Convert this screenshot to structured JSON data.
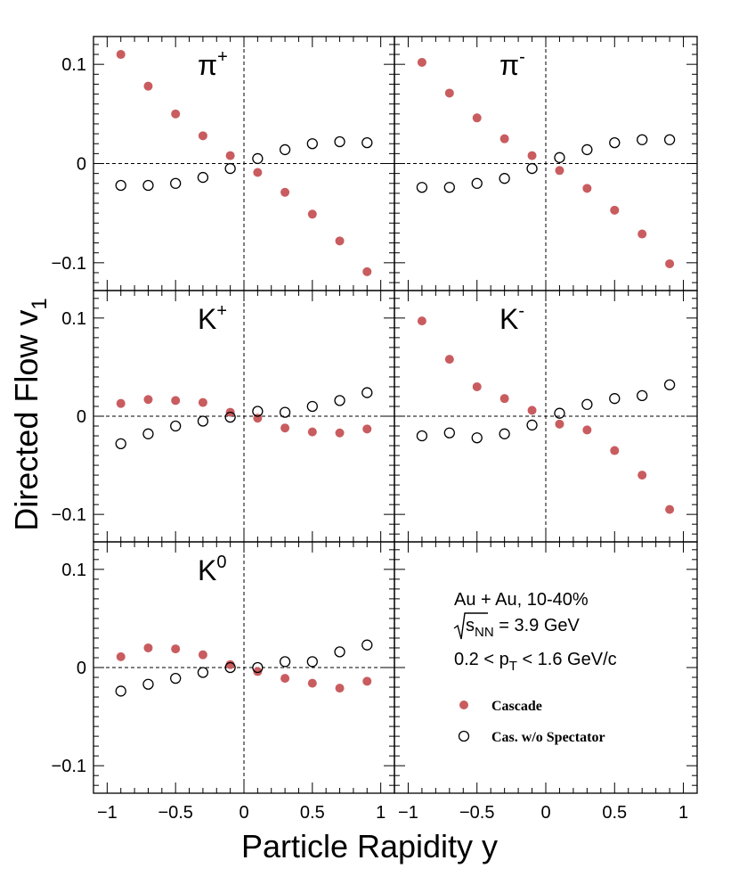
{
  "chart_data": {
    "type": "scatter",
    "layout": "grid-3x2",
    "xlabel": "Particle Rapidity y",
    "ylabel_main": "Directed Flow v",
    "ylabel_sub": "1",
    "xlim": [
      -1.1,
      1.1
    ],
    "ylim": [
      -0.128,
      0.128
    ],
    "x_ticks": [
      -1,
      -0.5,
      0,
      0.5,
      1
    ],
    "x_tick_labels": [
      "−1",
      "−0.5",
      "0",
      "0.5",
      "1"
    ],
    "y_ticks": [
      0.1,
      0,
      -0.1
    ],
    "y_tick_labels": [
      "0.1",
      "0",
      "−0.1"
    ],
    "colors": {
      "cascade": "#c95c5f",
      "spectator": "#000000",
      "frame": "#000000"
    },
    "legend": {
      "system": "Au + Au, 10-40%",
      "energy_s": "s",
      "energy_sub": "NN",
      "energy_value": " = 3.9 GeV",
      "pt_prefix": "0.2 < p",
      "pt_sub": "T",
      "pt_suffix": " < 1.6 GeV/c",
      "series": [
        {
          "name": "Cascade",
          "style": "filled-circle"
        },
        {
          "name": "Cas. w/o Spectator",
          "style": "open-circle"
        }
      ]
    },
    "x": [
      -0.9,
      -0.7,
      -0.5,
      -0.3,
      -0.1,
      0.1,
      0.3,
      0.5,
      0.7,
      0.9
    ],
    "panels": [
      {
        "label": "π",
        "sup": "+",
        "series": [
          {
            "name": "Cascade",
            "values": [
              0.11,
              0.078,
              0.05,
              0.028,
              0.008,
              -0.009,
              -0.029,
              -0.051,
              -0.078,
              -0.109
            ]
          },
          {
            "name": "Cas. w/o Spectator",
            "values": [
              -0.022,
              -0.022,
              -0.02,
              -0.014,
              -0.005,
              0.005,
              0.014,
              0.02,
              0.022,
              0.021
            ]
          }
        ]
      },
      {
        "label": "π",
        "sup": "-",
        "series": [
          {
            "name": "Cascade",
            "values": [
              0.102,
              0.071,
              0.046,
              0.025,
              0.008,
              -0.007,
              -0.025,
              -0.047,
              -0.071,
              -0.101
            ]
          },
          {
            "name": "Cas. w/o Spectator",
            "values": [
              -0.024,
              -0.024,
              -0.02,
              -0.015,
              -0.005,
              0.006,
              0.014,
              0.021,
              0.024,
              0.024
            ]
          }
        ]
      },
      {
        "label": "K",
        "sup": "+",
        "series": [
          {
            "name": "Cascade",
            "values": [
              0.013,
              0.017,
              0.016,
              0.014,
              0.004,
              -0.002,
              -0.012,
              -0.016,
              -0.017,
              -0.013
            ]
          },
          {
            "name": "Cas. w/o Spectator",
            "values": [
              -0.028,
              -0.018,
              -0.01,
              -0.005,
              -0.001,
              0.005,
              0.004,
              0.01,
              0.016,
              0.024
            ]
          }
        ]
      },
      {
        "label": "K",
        "sup": "-",
        "series": [
          {
            "name": "Cascade",
            "values": [
              0.097,
              0.058,
              0.03,
              0.018,
              0.006,
              -0.008,
              -0.014,
              -0.035,
              -0.06,
              -0.095
            ]
          },
          {
            "name": "Cas. w/o Spectator",
            "values": [
              -0.02,
              -0.017,
              -0.022,
              -0.018,
              -0.009,
              0.003,
              0.012,
              0.018,
              0.021,
              0.032
            ]
          }
        ]
      },
      {
        "label": "K",
        "sup": "0",
        "series": [
          {
            "name": "Cascade",
            "values": [
              0.011,
              0.02,
              0.019,
              0.013,
              0.003,
              -0.004,
              -0.011,
              -0.016,
              -0.021,
              -0.014
            ]
          },
          {
            "name": "Cas. w/o Spectator",
            "values": [
              -0.024,
              -0.017,
              -0.011,
              -0.005,
              0.0,
              0.0,
              0.006,
              0.006,
              0.016,
              0.023
            ]
          }
        ]
      },
      {
        "label": "",
        "sup": "",
        "legend_panel": true,
        "series": []
      }
    ]
  }
}
